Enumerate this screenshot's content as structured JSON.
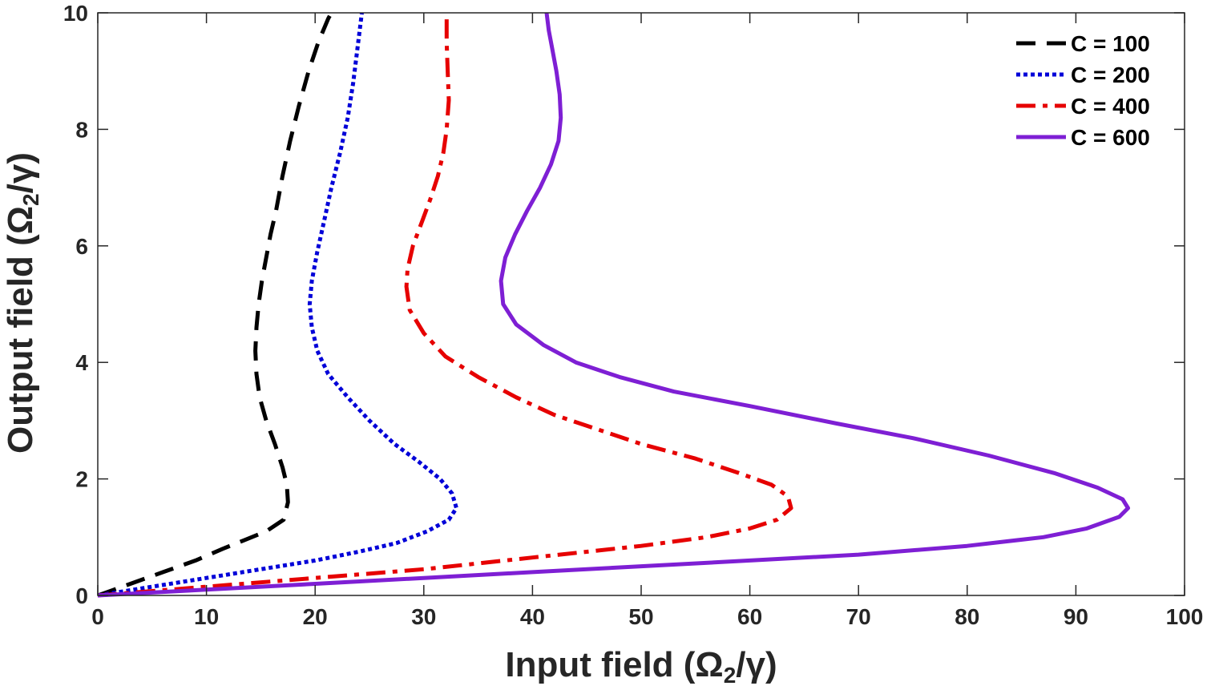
{
  "chart_data": {
    "type": "line",
    "title": "",
    "xlabel": {
      "main": "Input  field  (Ω",
      "sub": "2",
      "tail": "/γ)"
    },
    "ylabel": {
      "main": "Output  field  (Ω",
      "sub": "2",
      "tail": "/γ)"
    },
    "xlim": [
      0,
      100
    ],
    "ylim": [
      0,
      10
    ],
    "xticks": [
      0,
      10,
      20,
      30,
      40,
      50,
      60,
      70,
      80,
      90,
      100
    ],
    "yticks": [
      0,
      2,
      4,
      6,
      8,
      10
    ],
    "xtick_labels": [
      "0",
      "10",
      "20",
      "30",
      "40",
      "50",
      "60",
      "70",
      "80",
      "90",
      "100"
    ],
    "ytick_labels": [
      "0",
      "2",
      "4",
      "6",
      "8",
      "10"
    ],
    "grid": false,
    "legend_position": "top-right",
    "series": [
      {
        "name": "C = 100",
        "color": "#000000",
        "style": "dashed",
        "points": [
          [
            0,
            0
          ],
          [
            3,
            0.2
          ],
          [
            6,
            0.4
          ],
          [
            9,
            0.6
          ],
          [
            11.5,
            0.8
          ],
          [
            13.5,
            0.95
          ],
          [
            15.5,
            1.1
          ],
          [
            17.1,
            1.3
          ],
          [
            17.5,
            1.6
          ],
          [
            17.4,
            1.9
          ],
          [
            17.0,
            2.2
          ],
          [
            16.3,
            2.6
          ],
          [
            15.5,
            3.0
          ],
          [
            14.9,
            3.4
          ],
          [
            14.6,
            3.8
          ],
          [
            14.5,
            4.2
          ],
          [
            14.6,
            4.6
          ],
          [
            14.8,
            5.0
          ],
          [
            15.1,
            5.4
          ],
          [
            15.5,
            5.8
          ],
          [
            15.9,
            6.2
          ],
          [
            16.4,
            6.6
          ],
          [
            17.0,
            7.2
          ],
          [
            17.7,
            7.8
          ],
          [
            18.5,
            8.4
          ],
          [
            19.4,
            9.0
          ],
          [
            20.3,
            9.5
          ],
          [
            21.2,
            9.9
          ],
          [
            21.5,
            10.0
          ]
        ]
      },
      {
        "name": "C = 200",
        "color": "#0000d8",
        "style": "dotted",
        "points": [
          [
            0,
            0
          ],
          [
            5,
            0.15
          ],
          [
            10,
            0.3
          ],
          [
            15,
            0.45
          ],
          [
            20,
            0.6
          ],
          [
            24,
            0.75
          ],
          [
            27.5,
            0.9
          ],
          [
            30.3,
            1.1
          ],
          [
            32.3,
            1.3
          ],
          [
            33.0,
            1.5
          ],
          [
            32.6,
            1.75
          ],
          [
            31.5,
            2.0
          ],
          [
            29.5,
            2.3
          ],
          [
            27.3,
            2.6
          ],
          [
            25.0,
            3.0
          ],
          [
            23.0,
            3.4
          ],
          [
            21.2,
            3.8
          ],
          [
            20.2,
            4.2
          ],
          [
            19.7,
            4.6
          ],
          [
            19.5,
            5.0
          ],
          [
            19.7,
            5.4
          ],
          [
            20.2,
            5.9
          ],
          [
            20.8,
            6.4
          ],
          [
            21.5,
            7.0
          ],
          [
            22.3,
            7.6
          ],
          [
            23.0,
            8.2
          ],
          [
            23.5,
            8.8
          ],
          [
            23.9,
            9.4
          ],
          [
            24.3,
            10.0
          ]
        ]
      },
      {
        "name": "C = 400",
        "color": "#e60000",
        "style": "dashdot",
        "points": [
          [
            0,
            0
          ],
          [
            10,
            0.15
          ],
          [
            20,
            0.3
          ],
          [
            30,
            0.45
          ],
          [
            40,
            0.65
          ],
          [
            50,
            0.85
          ],
          [
            56,
            1.0
          ],
          [
            60,
            1.15
          ],
          [
            62.5,
            1.3
          ],
          [
            63.8,
            1.5
          ],
          [
            63.5,
            1.7
          ],
          [
            62,
            1.9
          ],
          [
            59,
            2.1
          ],
          [
            55,
            2.35
          ],
          [
            50,
            2.6
          ],
          [
            46,
            2.85
          ],
          [
            42,
            3.1
          ],
          [
            38.5,
            3.4
          ],
          [
            35,
            3.75
          ],
          [
            32,
            4.1
          ],
          [
            30,
            4.5
          ],
          [
            28.7,
            4.9
          ],
          [
            28.4,
            5.3
          ],
          [
            28.5,
            5.6
          ],
          [
            29.0,
            6.0
          ],
          [
            29.8,
            6.4
          ],
          [
            30.6,
            6.8
          ],
          [
            31.3,
            7.2
          ],
          [
            31.8,
            7.6
          ],
          [
            32.1,
            8.0
          ],
          [
            32.3,
            8.5
          ],
          [
            32.2,
            9.0
          ],
          [
            32.1,
            9.5
          ],
          [
            32.1,
            10.0
          ]
        ]
      },
      {
        "name": "C = 600",
        "color": "#7e1fd4",
        "style": "solid",
        "points": [
          [
            0,
            0
          ],
          [
            10,
            0.1
          ],
          [
            20,
            0.2
          ],
          [
            30,
            0.3
          ],
          [
            40,
            0.4
          ],
          [
            50,
            0.5
          ],
          [
            60,
            0.6
          ],
          [
            70,
            0.7
          ],
          [
            80,
            0.85
          ],
          [
            87,
            1.0
          ],
          [
            91,
            1.15
          ],
          [
            94,
            1.35
          ],
          [
            94.8,
            1.5
          ],
          [
            94.3,
            1.65
          ],
          [
            92,
            1.85
          ],
          [
            88,
            2.1
          ],
          [
            82,
            2.4
          ],
          [
            75,
            2.7
          ],
          [
            68,
            2.95
          ],
          [
            60,
            3.25
          ],
          [
            53,
            3.5
          ],
          [
            48,
            3.75
          ],
          [
            44,
            4.0
          ],
          [
            41,
            4.3
          ],
          [
            38.5,
            4.65
          ],
          [
            37.3,
            5.0
          ],
          [
            37.1,
            5.4
          ],
          [
            37.5,
            5.8
          ],
          [
            38.4,
            6.2
          ],
          [
            39.5,
            6.6
          ],
          [
            40.7,
            7.0
          ],
          [
            41.7,
            7.4
          ],
          [
            42.4,
            7.8
          ],
          [
            42.6,
            8.2
          ],
          [
            42.5,
            8.6
          ],
          [
            42.2,
            9.0
          ],
          [
            41.8,
            9.4
          ],
          [
            41.5,
            9.7
          ],
          [
            41.3,
            10.0
          ]
        ]
      }
    ]
  }
}
